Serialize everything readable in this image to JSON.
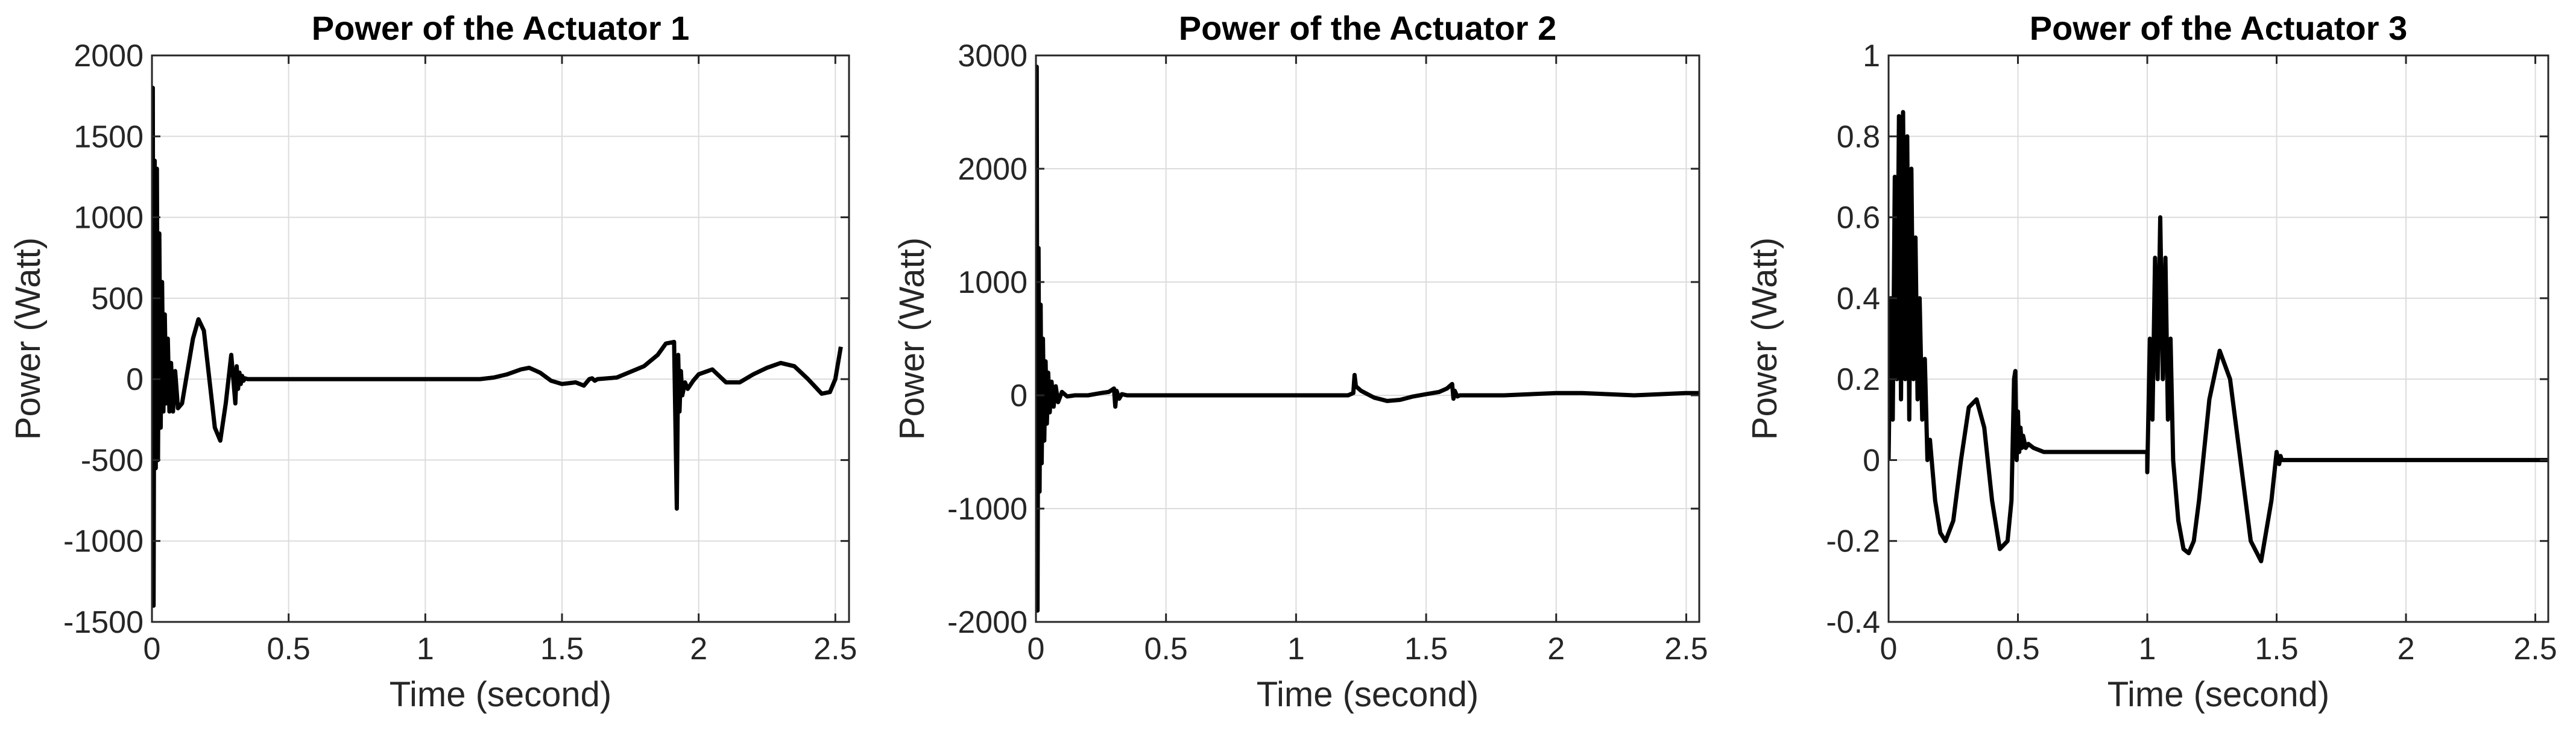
{
  "chart_data": [
    {
      "type": "line",
      "title": "Power of the Actuator 1",
      "xlabel": "Time (second)",
      "ylabel": "Power (Watt)",
      "xlim": [
        0,
        2.55
      ],
      "ylim": [
        -1500,
        2000
      ],
      "xticks": [
        0,
        0.5,
        1,
        1.5,
        2,
        2.5
      ],
      "xtick_labels": [
        "0",
        "0.5",
        "1",
        "1.5",
        "2",
        "2.5"
      ],
      "yticks": [
        -1500,
        -1000,
        -500,
        0,
        500,
        1000,
        1500,
        2000
      ],
      "ytick_labels": [
        "-1500",
        "-1000",
        "-500",
        "0",
        "500",
        "1000",
        "1500",
        "2000"
      ],
      "grid": true,
      "series": [
        {
          "color": "#000000",
          "x": [
            0,
            0.003,
            0.006,
            0.01,
            0.014,
            0.018,
            0.022,
            0.027,
            0.032,
            0.037,
            0.042,
            0.047,
            0.052,
            0.058,
            0.064,
            0.07,
            0.077,
            0.085,
            0.095,
            0.11,
            0.13,
            0.15,
            0.17,
            0.19,
            0.21,
            0.23,
            0.25,
            0.27,
            0.29,
            0.305,
            0.31,
            0.315,
            0.32,
            0.325,
            0.33,
            0.335,
            0.34,
            0.35,
            0.4,
            0.6,
            0.8,
            1.0,
            1.2,
            1.25,
            1.3,
            1.35,
            1.38,
            1.42,
            1.46,
            1.5,
            1.55,
            1.58,
            1.6,
            1.61,
            1.62,
            1.63,
            1.7,
            1.8,
            1.85,
            1.88,
            1.91,
            1.92,
            1.925,
            1.93,
            1.935,
            1.94,
            1.95,
            1.96,
            1.98,
            2.0,
            2.05,
            2.1,
            2.15,
            2.2,
            2.25,
            2.3,
            2.35,
            2.4,
            2.45,
            2.48,
            2.5,
            2.52
          ],
          "y": [
            0,
            1800,
            -1400,
            1350,
            -550,
            1300,
            -500,
            900,
            -300,
            600,
            -200,
            400,
            -150,
            250,
            -200,
            100,
            -200,
            50,
            -180,
            -150,
            50,
            250,
            370,
            300,
            0,
            -300,
            -380,
            -150,
            150,
            -150,
            80,
            -60,
            40,
            -30,
            20,
            -10,
            5,
            0,
            0,
            0,
            0,
            0,
            0,
            10,
            30,
            60,
            70,
            40,
            -10,
            -30,
            -20,
            -40,
            0,
            5,
            -10,
            0,
            10,
            80,
            150,
            220,
            230,
            -800,
            150,
            -200,
            50,
            -100,
            -20,
            -60,
            -10,
            30,
            60,
            -20,
            -20,
            30,
            70,
            100,
            80,
            0,
            -90,
            -80,
            0,
            200
          ]
        }
      ]
    },
    {
      "type": "line",
      "title": "Power of the Actuator 2",
      "xlabel": "Time (second)",
      "ylabel": "Power (Watt)",
      "xlim": [
        0,
        2.55
      ],
      "ylim": [
        -2000,
        3000
      ],
      "xticks": [
        0,
        0.5,
        1,
        1.5,
        2,
        2.5
      ],
      "xtick_labels": [
        "0",
        "0.5",
        "1",
        "1.5",
        "2",
        "2.5"
      ],
      "yticks": [
        -2000,
        -1000,
        0,
        1000,
        2000,
        3000
      ],
      "ytick_labels": [
        "-2000",
        "-1000",
        "0",
        "1000",
        "2000",
        "3000"
      ],
      "grid": true,
      "series": [
        {
          "color": "#000000",
          "x": [
            0,
            0.003,
            0.006,
            0.01,
            0.014,
            0.018,
            0.022,
            0.027,
            0.032,
            0.037,
            0.042,
            0.047,
            0.053,
            0.06,
            0.068,
            0.076,
            0.085,
            0.1,
            0.12,
            0.15,
            0.2,
            0.25,
            0.28,
            0.3,
            0.305,
            0.31,
            0.32,
            0.33,
            0.35,
            0.4,
            0.6,
            0.8,
            1.0,
            1.2,
            1.22,
            1.225,
            1.23,
            1.25,
            1.3,
            1.35,
            1.4,
            1.45,
            1.5,
            1.55,
            1.58,
            1.6,
            1.605,
            1.61,
            1.62,
            1.63,
            1.7,
            1.8,
            1.9,
            2.0,
            2.1,
            2.2,
            2.3,
            2.4,
            2.5,
            2.55
          ],
          "y": [
            0,
            2900,
            -1900,
            1300,
            -850,
            800,
            -600,
            500,
            -400,
            300,
            -250,
            200,
            -150,
            120,
            -100,
            80,
            -60,
            30,
            -10,
            0,
            0,
            20,
            30,
            60,
            -100,
            40,
            -30,
            10,
            0,
            0,
            0,
            0,
            0,
            0,
            20,
            180,
            80,
            40,
            -20,
            -50,
            -40,
            -10,
            10,
            30,
            60,
            100,
            -30,
            40,
            -10,
            0,
            0,
            0,
            10,
            20,
            20,
            10,
            0,
            10,
            20,
            20
          ]
        }
      ]
    },
    {
      "type": "line",
      "title": "Power of the Actuator 3",
      "xlabel": "Time (second)",
      "ylabel": "Power (Watt)",
      "xlim": [
        0,
        2.55
      ],
      "ylim": [
        -0.4,
        1
      ],
      "xticks": [
        0,
        0.5,
        1,
        1.5,
        2,
        2.5
      ],
      "xtick_labels": [
        "0",
        "0.5",
        "1",
        "1.5",
        "2",
        "2.5"
      ],
      "yticks": [
        -0.4,
        -0.2,
        0,
        0.2,
        0.4,
        0.6,
        0.8,
        1
      ],
      "ytick_labels": [
        "-0.4",
        "-0.2",
        "0",
        "0.2",
        "0.4",
        "0.6",
        "0.8",
        "1"
      ],
      "grid": true,
      "series": [
        {
          "color": "#000000",
          "x": [
            0,
            0.008,
            0.016,
            0.024,
            0.032,
            0.04,
            0.048,
            0.056,
            0.064,
            0.072,
            0.08,
            0.088,
            0.096,
            0.104,
            0.112,
            0.12,
            0.13,
            0.14,
            0.15,
            0.16,
            0.18,
            0.2,
            0.22,
            0.25,
            0.28,
            0.31,
            0.34,
            0.37,
            0.4,
            0.43,
            0.46,
            0.475,
            0.485,
            0.49,
            0.495,
            0.5,
            0.505,
            0.51,
            0.515,
            0.52,
            0.53,
            0.54,
            0.56,
            0.6,
            0.7,
            0.8,
            0.9,
            1.0,
            1.0,
            1.01,
            1.02,
            1.03,
            1.04,
            1.05,
            1.06,
            1.07,
            1.08,
            1.09,
            1.1,
            1.12,
            1.14,
            1.16,
            1.18,
            1.2,
            1.24,
            1.28,
            1.32,
            1.36,
            1.4,
            1.44,
            1.48,
            1.5,
            1.51,
            1.515,
            1.52,
            1.53,
            1.55,
            1.6,
            1.8,
            2.0,
            2.2,
            2.4,
            2.55
          ],
          "y": [
            0,
            0.4,
            0.1,
            0.7,
            0.2,
            0.85,
            0.15,
            0.86,
            0.2,
            0.8,
            0.1,
            0.72,
            0.2,
            0.55,
            0.15,
            0.4,
            0.1,
            0.25,
            0.0,
            0.05,
            -0.1,
            -0.18,
            -0.2,
            -0.15,
            0.0,
            0.13,
            0.15,
            0.08,
            -0.1,
            -0.22,
            -0.2,
            -0.1,
            0.2,
            0.22,
            0.0,
            0.12,
            0.02,
            0.08,
            0.03,
            0.06,
            0.03,
            0.04,
            0.03,
            0.02,
            0.02,
            0.02,
            0.02,
            0.02,
            -0.03,
            0.3,
            0.1,
            0.5,
            0.2,
            0.6,
            0.2,
            0.5,
            0.1,
            0.3,
            0.0,
            -0.15,
            -0.22,
            -0.23,
            -0.2,
            -0.1,
            0.15,
            0.27,
            0.2,
            0.0,
            -0.2,
            -0.25,
            -0.1,
            0.02,
            -0.01,
            0.01,
            0.0,
            0.0,
            0.0,
            0.0,
            0.0,
            0.0,
            0.0,
            0.0,
            0.0
          ]
        }
      ]
    }
  ]
}
